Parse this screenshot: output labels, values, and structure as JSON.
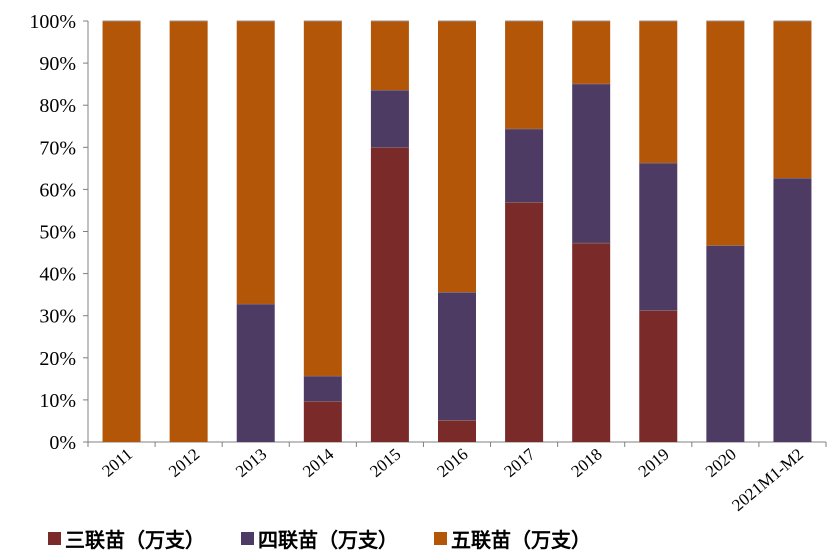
{
  "chart_data": {
    "type": "bar",
    "stacked": "percent",
    "categories": [
      "2011",
      "2012",
      "2013",
      "2014",
      "2015",
      "2016",
      "2017",
      "2018",
      "2019",
      "2020",
      "2021M1-M2"
    ],
    "series": [
      {
        "name": "三联苗（万支）",
        "color": "#7b2a2a",
        "values": [
          0,
          0,
          0,
          9.7,
          70,
          5.2,
          57,
          47.3,
          31.3,
          0,
          0
        ]
      },
      {
        "name": "四联苗（万支）",
        "color": "#4e3b63",
        "values": [
          0,
          0,
          32.8,
          6,
          13.6,
          30.4,
          17.4,
          37.8,
          35,
          46.7,
          62.7
        ]
      },
      {
        "name": "五联苗（万支）",
        "color": "#b45608",
        "values": [
          100,
          100,
          67.2,
          84.3,
          16.4,
          64.4,
          25.6,
          14.9,
          33.7,
          53.3,
          37.3
        ]
      }
    ],
    "yticks": [
      "0%",
      "10%",
      "20%",
      "30%",
      "40%",
      "50%",
      "60%",
      "70%",
      "80%",
      "90%",
      "100%"
    ],
    "ylim": [
      0,
      100
    ],
    "grid": false,
    "legend_position": "bottom"
  }
}
